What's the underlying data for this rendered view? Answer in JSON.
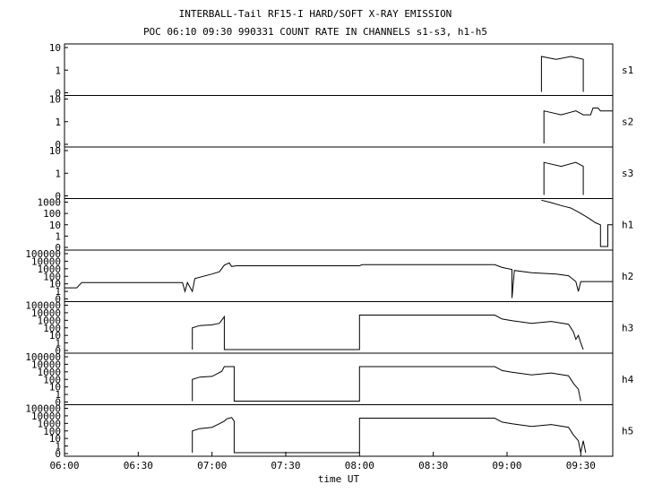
{
  "chart_data": {
    "type": "line",
    "title": "INTERBALL-Tail RF15-I HARD/SOFT X-RAY EMISSION",
    "subtitle": "POC 06:10 09:30 990331  COUNT RATE IN CHANNELS s1-s3, h1-h5",
    "xlabel": "time UT",
    "x_ticks": [
      "06:00",
      "06:30",
      "07:00",
      "07:30",
      "08:00",
      "08:30",
      "09:00",
      "09:30"
    ],
    "xlim": [
      "06:00",
      "09:43"
    ],
    "scale": "log",
    "grid": false,
    "panels": [
      {
        "name": "s1",
        "ytick_labels": [
          "10",
          "1",
          "0"
        ],
        "series": [
          [
            "09:14",
            0.3
          ],
          [
            "09:14",
            4
          ],
          [
            "09:20",
            3
          ],
          [
            "09:26",
            4
          ],
          [
            "09:31",
            3
          ],
          [
            "09:31",
            0.3
          ]
        ]
      },
      {
        "name": "s2",
        "ytick_labels": [
          "10",
          "1",
          "0"
        ],
        "series": [
          [
            "09:15",
            0.3
          ],
          [
            "09:15",
            3
          ],
          [
            "09:22",
            2
          ],
          [
            "09:28",
            3
          ],
          [
            "09:31",
            2
          ],
          [
            "09:32",
            2
          ],
          [
            "09:34",
            2
          ],
          [
            "09:35",
            4
          ],
          [
            "09:37",
            4
          ],
          [
            "09:38",
            3
          ],
          [
            "09:43",
            3
          ]
        ]
      },
      {
        "name": "s3",
        "ytick_labels": [
          "10",
          "1",
          "0"
        ],
        "series": [
          [
            "09:15",
            0.3
          ],
          [
            "09:15",
            3
          ],
          [
            "09:22",
            2
          ],
          [
            "09:28",
            3
          ],
          [
            "09:31",
            2
          ],
          [
            "09:31",
            0.3
          ]
        ]
      },
      {
        "name": "h1",
        "ytick_labels": [
          "1000",
          "100",
          "10",
          "1",
          "0"
        ],
        "series": [
          [
            "09:14",
            1500
          ],
          [
            "09:18",
            900
          ],
          [
            "09:22",
            500
          ],
          [
            "09:26",
            300
          ],
          [
            "09:30",
            100
          ],
          [
            "09:33",
            40
          ],
          [
            "09:36",
            15
          ],
          [
            "09:38",
            10
          ],
          [
            "09:38",
            0.3
          ],
          [
            "09:41",
            0.3
          ],
          [
            "09:41",
            10
          ],
          [
            "09:43",
            10
          ]
        ]
      },
      {
        "name": "h2",
        "ytick_labels": [
          "100000",
          "10000",
          "1000",
          "100",
          "10",
          "1",
          "0"
        ],
        "series": [
          [
            "06:00",
            3
          ],
          [
            "06:05",
            3
          ],
          [
            "06:07",
            15
          ],
          [
            "06:48",
            15
          ],
          [
            "06:49",
            1
          ],
          [
            "06:50",
            15
          ],
          [
            "06:52",
            1
          ],
          [
            "06:53",
            50
          ],
          [
            "07:00",
            200
          ],
          [
            "07:03",
            400
          ],
          [
            "07:05",
            3000
          ],
          [
            "07:07",
            6000
          ],
          [
            "07:08",
            2000
          ],
          [
            "07:10",
            2500
          ],
          [
            "08:00",
            2500
          ],
          [
            "08:01",
            3500
          ],
          [
            "08:55",
            3500
          ],
          [
            "08:58",
            1500
          ],
          [
            "09:02",
            800
          ],
          [
            "09:02",
            0.3
          ],
          [
            "09:03",
            600
          ],
          [
            "09:10",
            300
          ],
          [
            "09:20",
            200
          ],
          [
            "09:25",
            120
          ],
          [
            "09:28",
            20
          ],
          [
            "09:29",
            1
          ],
          [
            "09:30",
            20
          ],
          [
            "09:43",
            20
          ]
        ]
      },
      {
        "name": "h3",
        "ytick_labels": [
          "100000",
          "10000",
          "1000",
          "100",
          "10",
          "1",
          "0"
        ],
        "series": [
          [
            "06:52",
            0.3
          ],
          [
            "06:52",
            100
          ],
          [
            "06:55",
            200
          ],
          [
            "07:00",
            250
          ],
          [
            "07:03",
            400
          ],
          [
            "07:05",
            3000
          ],
          [
            "07:05",
            0.3
          ],
          [
            "08:00",
            0.3
          ],
          [
            "08:00",
            5000
          ],
          [
            "08:55",
            5000
          ],
          [
            "08:58",
            1500
          ],
          [
            "09:02",
            900
          ],
          [
            "09:10",
            400
          ],
          [
            "09:18",
            700
          ],
          [
            "09:25",
            300
          ],
          [
            "09:27",
            30
          ],
          [
            "09:28",
            3
          ],
          [
            "09:29",
            10
          ],
          [
            "09:30",
            1
          ],
          [
            "09:31",
            0.3
          ]
        ]
      },
      {
        "name": "h4",
        "ytick_labels": [
          "100000",
          "10000",
          "1000",
          "100",
          "10",
          "1",
          "0"
        ],
        "series": [
          [
            "06:52",
            0.3
          ],
          [
            "06:52",
            100
          ],
          [
            "06:55",
            200
          ],
          [
            "07:00",
            250
          ],
          [
            "07:04",
            1200
          ],
          [
            "07:05",
            5000
          ],
          [
            "07:09",
            5000
          ],
          [
            "07:09",
            0.3
          ],
          [
            "08:00",
            0.3
          ],
          [
            "08:00",
            5000
          ],
          [
            "08:55",
            5000
          ],
          [
            "08:58",
            1500
          ],
          [
            "09:02",
            900
          ],
          [
            "09:10",
            400
          ],
          [
            "09:18",
            700
          ],
          [
            "09:25",
            300
          ],
          [
            "09:27",
            30
          ],
          [
            "09:29",
            5
          ],
          [
            "09:30",
            0.3
          ]
        ]
      },
      {
        "name": "h5",
        "ytick_labels": [
          "100000",
          "10000",
          "1000",
          "100",
          "10",
          "1",
          "0"
        ],
        "series": [
          [
            "06:52",
            0.3
          ],
          [
            "06:52",
            100
          ],
          [
            "06:55",
            200
          ],
          [
            "07:00",
            300
          ],
          [
            "07:03",
            900
          ],
          [
            "07:05",
            2000
          ],
          [
            "07:06",
            4000
          ],
          [
            "07:08",
            6000
          ],
          [
            "07:09",
            2000
          ],
          [
            "07:09",
            0.3
          ],
          [
            "08:00",
            0.3
          ],
          [
            "08:00",
            5000
          ],
          [
            "08:55",
            5000
          ],
          [
            "08:58",
            1500
          ],
          [
            "09:02",
            900
          ],
          [
            "09:10",
            400
          ],
          [
            "09:18",
            700
          ],
          [
            "09:25",
            300
          ],
          [
            "09:27",
            30
          ],
          [
            "09:29",
            5
          ],
          [
            "09:30",
            0.3
          ],
          [
            "09:31",
            5
          ],
          [
            "09:32",
            0.3
          ]
        ]
      }
    ]
  }
}
